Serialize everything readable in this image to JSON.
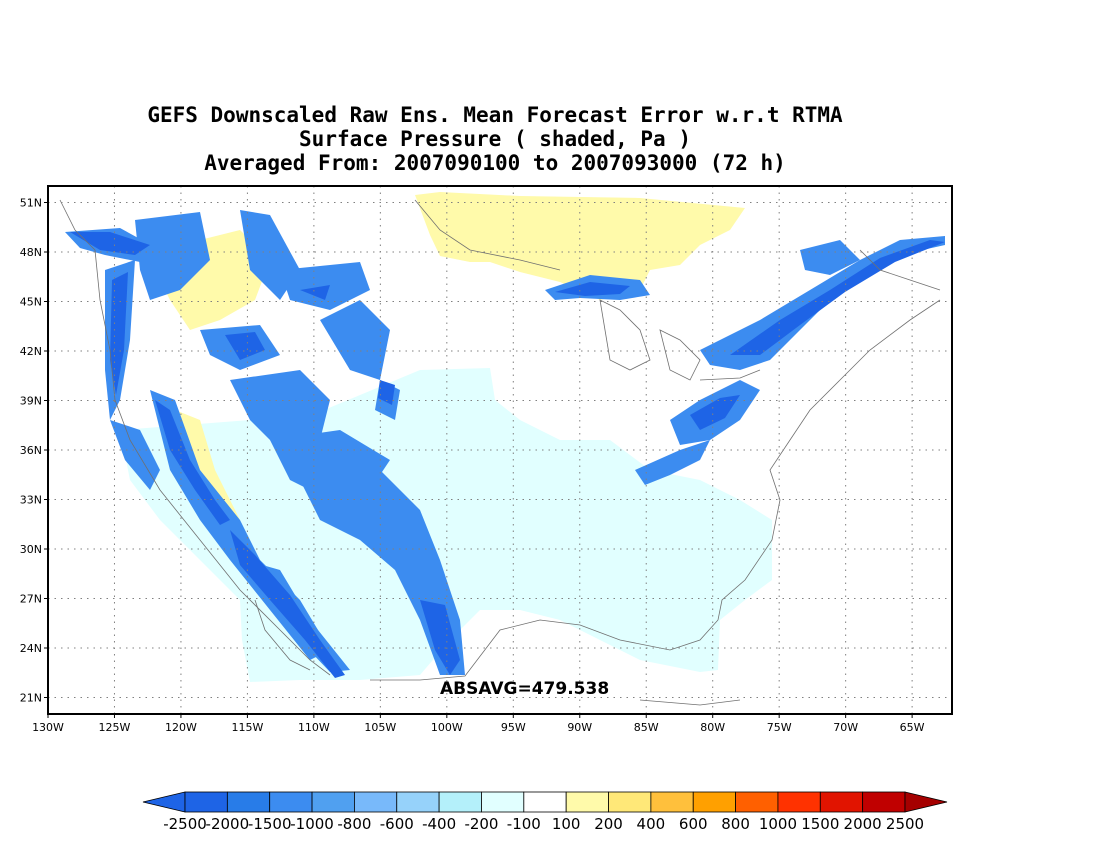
{
  "title": {
    "line1": "GEFS Downscaled Raw Ens. Mean Forecast Error w.r.t RTMA",
    "line2": "Surface Pressure ( shaded, Pa )",
    "line3": "Averaged From: 2007090100 to 2007093000 (72 h)"
  },
  "stat_label": "ABSAVG=479.538",
  "map": {
    "region": "Contiguous United States",
    "projection": "lat-lon",
    "lon_range": [
      -130,
      -62
    ],
    "lat_range": [
      20,
      52
    ],
    "grid": "dotted",
    "lat_ticks": [
      "21N",
      "24N",
      "27N",
      "30N",
      "33N",
      "36N",
      "39N",
      "42N",
      "45N",
      "48N",
      "51N"
    ],
    "lat_values": [
      21,
      24,
      27,
      30,
      33,
      36,
      39,
      42,
      45,
      48,
      51
    ],
    "lon_ticks": [
      "130W",
      "125W",
      "120W",
      "115W",
      "110W",
      "105W",
      "100W",
      "95W",
      "90W",
      "85W",
      "80W",
      "75W",
      "70W",
      "65W"
    ],
    "lon_values": [
      -130,
      -125,
      -120,
      -115,
      -110,
      -105,
      -100,
      -95,
      -90,
      -85,
      -80,
      -75,
      -70,
      -65
    ]
  },
  "colorbar": {
    "labels": [
      "-2500",
      "-2000",
      "-1500",
      "-1000",
      "-800",
      "-600",
      "-400",
      "-200",
      "-100",
      "100",
      "200",
      "400",
      "600",
      "800",
      "1000",
      "1500",
      "2000",
      "2500"
    ],
    "colors": [
      "#1e64e6",
      "#1e64e6",
      "#287ce8",
      "#3c8cf0",
      "#50a0f0",
      "#78b9fa",
      "#96d2fa",
      "#b4f0fa",
      "#e1ffff",
      "#ffffff",
      "#fffaaa",
      "#ffe878",
      "#ffc03c",
      "#ffa000",
      "#ff6000",
      "#ff3200",
      "#e11400",
      "#c00000",
      "#a50000"
    ]
  },
  "colors": {
    "strong_negative": "#1e64e6",
    "mid_negative": "#3c8cf0",
    "weak_negative": "#e1ffff",
    "weak_positive": "#fffaaa",
    "coast": "#707070"
  }
}
